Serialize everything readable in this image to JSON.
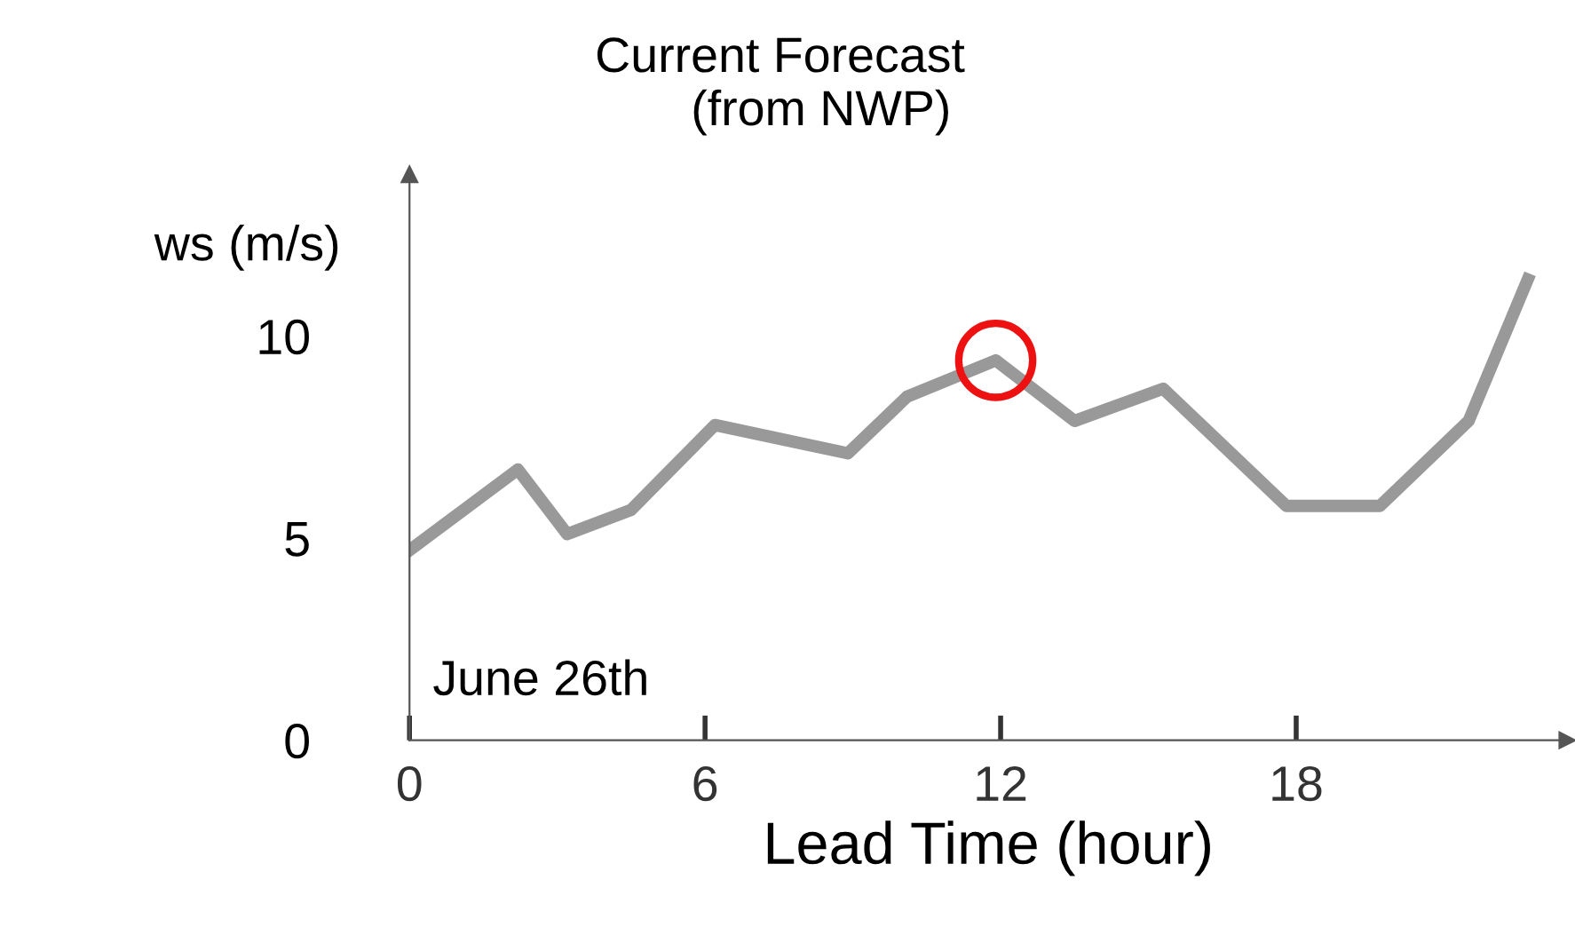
{
  "chart_data": {
    "type": "line",
    "title": "Current Forecast\n      (from NWP)",
    "xlabel": "Lead Time (hour)",
    "ylabel": "ws (m/s)",
    "annotations": [
      "June 26th"
    ],
    "series": [
      {
        "color": "#999999",
        "x": [
          0,
          2.2,
          3.2,
          4.5,
          6.2,
          8.9,
          10.1,
          11.9,
          13.5,
          15.3,
          17.8,
          19.7,
          21.5,
          22.7
        ],
        "values": [
          4.7,
          6.7,
          5.1,
          5.7,
          7.8,
          7.1,
          8.5,
          9.4,
          7.9,
          8.7,
          5.8,
          5.8,
          7.9,
          11.4
        ]
      },
      {
        "type": "scatter",
        "color": "#ee1111",
        "marker": "circle",
        "x": [
          11.9
        ],
        "values": [
          9.4
        ]
      }
    ],
    "xlim": [
      0,
      23.5
    ],
    "ylim": [
      0,
      14
    ],
    "xticks": [
      0,
      6,
      12,
      18
    ],
    "yticks": [
      0,
      5,
      10
    ],
    "grid": false,
    "legend": false,
    "marker": "none",
    "line_style": "solid"
  }
}
